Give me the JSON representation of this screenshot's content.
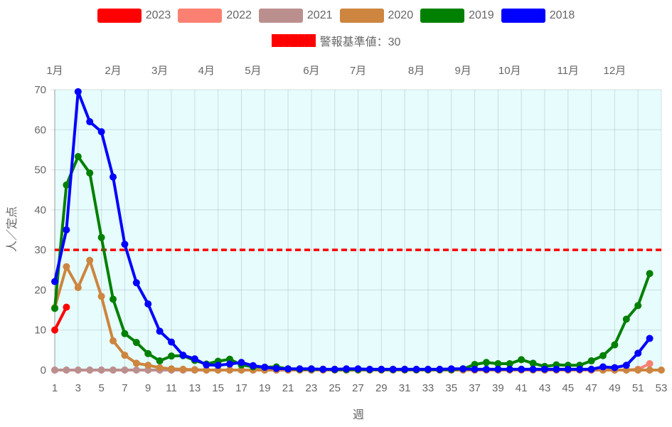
{
  "chart_data": {
    "type": "line",
    "xlabel": "週",
    "ylabel": "人／定点",
    "ylim": [
      0,
      70
    ],
    "yticks": [
      0,
      10,
      20,
      30,
      40,
      50,
      60,
      70
    ],
    "xlim": [
      1,
      53
    ],
    "xticks": [
      1,
      3,
      5,
      7,
      9,
      11,
      13,
      15,
      17,
      19,
      21,
      23,
      25,
      27,
      29,
      31,
      33,
      35,
      37,
      39,
      41,
      43,
      45,
      47,
      49,
      51,
      53
    ],
    "grid": true,
    "legend_position": "top",
    "background": "#E6FCFD",
    "month_labels": [
      {
        "label": "1月",
        "week": 1
      },
      {
        "label": "2月",
        "week": 6
      },
      {
        "label": "3月",
        "week": 10
      },
      {
        "label": "4月",
        "week": 14
      },
      {
        "label": "5月",
        "week": 18
      },
      {
        "label": "6月",
        "week": 23
      },
      {
        "label": "7月",
        "week": 27
      },
      {
        "label": "8月",
        "week": 32
      },
      {
        "label": "9月",
        "week": 36
      },
      {
        "label": "10月",
        "week": 40
      },
      {
        "label": "11月",
        "week": 45
      },
      {
        "label": "12月",
        "week": 49
      }
    ],
    "threshold": {
      "name": "警報基準値：30",
      "value": 30,
      "color": "#FF0000"
    },
    "series": [
      {
        "name": "2023",
        "color": "#FF0000",
        "start_week": 1,
        "values": [
          10.0,
          15.7
        ]
      },
      {
        "name": "2022",
        "color": "#FA8072",
        "start_week": 1,
        "values": [
          0,
          0,
          0,
          0,
          0,
          0,
          0,
          0,
          0,
          0,
          0,
          0,
          0,
          0,
          0,
          0,
          0,
          0,
          0,
          0,
          0,
          0,
          0,
          0,
          0,
          0,
          0,
          0,
          0,
          0,
          0,
          0,
          0,
          0,
          0,
          0,
          0,
          0,
          0,
          0,
          0,
          0,
          0,
          0,
          0,
          0,
          0,
          0,
          0,
          0,
          0.2,
          1.6
        ]
      },
      {
        "name": "2021",
        "color": "#BC8F8F",
        "start_week": 1,
        "values": [
          0,
          0,
          0,
          0,
          0,
          0,
          0,
          0,
          0,
          0,
          0,
          0,
          0,
          0,
          0,
          0,
          0,
          0,
          0,
          0,
          0,
          0,
          0,
          0,
          0,
          0,
          0,
          0,
          0,
          0,
          0,
          0,
          0,
          0,
          0,
          0,
          0,
          0,
          0,
          0,
          0,
          0,
          0,
          0,
          0,
          0,
          0,
          0,
          0,
          0,
          0,
          0
        ]
      },
      {
        "name": "2020",
        "color": "#CD853F",
        "start_week": 1,
        "values": [
          15.6,
          25.8,
          20.6,
          27.4,
          18.4,
          7.3,
          3.7,
          1.7,
          1.2,
          0.6,
          0.3,
          0.2,
          0.1,
          0,
          0,
          0,
          0,
          0,
          0,
          0,
          0,
          0,
          0,
          0,
          0,
          0,
          0,
          0,
          0,
          0,
          0,
          0,
          0,
          0,
          0,
          0,
          0,
          0,
          0,
          0,
          0,
          0,
          0,
          0,
          0,
          0,
          0,
          0,
          0,
          0,
          0,
          0,
          0
        ]
      },
      {
        "name": "2019",
        "color": "#008000",
        "start_week": 1,
        "values": [
          15.4,
          46.2,
          53.3,
          49.2,
          33.1,
          17.7,
          9.1,
          6.9,
          4.1,
          2.3,
          3.5,
          3.6,
          2.4,
          1.5,
          2.2,
          2.7,
          1.3,
          0.8,
          0.7,
          0.8,
          0.3,
          0.2,
          0.2,
          0.2,
          0.1,
          0.1,
          0.1,
          0.1,
          0.1,
          0.1,
          0.1,
          0.1,
          0.1,
          0.1,
          0.1,
          0.3,
          1.4,
          1.9,
          1.6,
          1.6,
          2.6,
          1.7,
          0.9,
          1.3,
          1.2,
          1.2,
          2.3,
          3.6,
          6.3,
          12.7,
          16.1,
          24.1
        ]
      },
      {
        "name": "2018",
        "color": "#0000FF",
        "start_week": 1,
        "values": [
          22.1,
          35.0,
          69.5,
          62.0,
          59.5,
          48.2,
          31.4,
          21.8,
          16.5,
          9.7,
          7.0,
          3.7,
          2.8,
          1.3,
          1.2,
          1.5,
          1.9,
          1.1,
          0.7,
          0.4,
          0.3,
          0.3,
          0.3,
          0.2,
          0.2,
          0.3,
          0.3,
          0.2,
          0.2,
          0.2,
          0.2,
          0.2,
          0.2,
          0.2,
          0.3,
          0.3,
          0.2,
          0.2,
          0.2,
          0.2,
          0.2,
          0.2,
          0.2,
          0.2,
          0.2,
          0.2,
          0.2,
          0.8,
          0.6,
          1.2,
          4.2,
          7.9
        ]
      }
    ]
  }
}
